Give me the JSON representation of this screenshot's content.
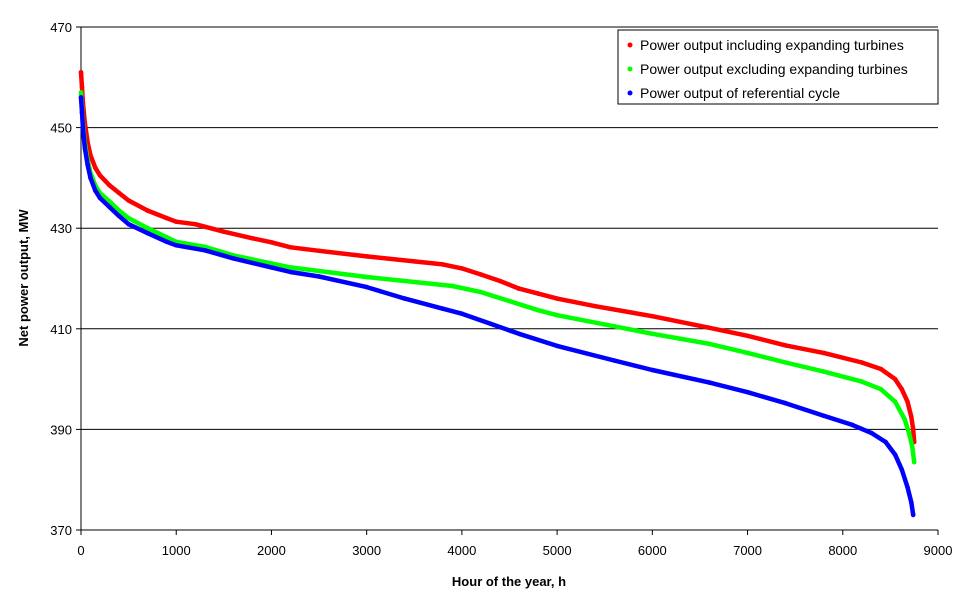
{
  "chart_data": {
    "type": "scatter",
    "title": "",
    "xlabel": "Hour of the year, h",
    "ylabel": "Net power output, MW",
    "xlim": [
      0,
      9000
    ],
    "ylim": [
      370,
      470
    ],
    "xticks": [
      0,
      1000,
      2000,
      3000,
      4000,
      5000,
      6000,
      7000,
      8000,
      9000
    ],
    "yticks": [
      370,
      390,
      410,
      430,
      450,
      470
    ],
    "grid": "horizontal",
    "legend_position": "top-right",
    "series": [
      {
        "name": "Power output including expanding turbines",
        "color": "#ff0000",
        "points": [
          [
            0,
            461
          ],
          [
            10,
            458
          ],
          [
            20,
            455
          ],
          [
            40,
            451
          ],
          [
            70,
            447
          ],
          [
            100,
            444.5
          ],
          [
            150,
            442
          ],
          [
            200,
            440.5
          ],
          [
            300,
            438.5
          ],
          [
            400,
            437
          ],
          [
            500,
            435.5
          ],
          [
            700,
            433.5
          ],
          [
            900,
            432
          ],
          [
            1000,
            431.3
          ],
          [
            1200,
            430.8
          ],
          [
            1500,
            429.3
          ],
          [
            1800,
            428
          ],
          [
            2000,
            427.2
          ],
          [
            2200,
            426.2
          ],
          [
            2500,
            425.5
          ],
          [
            3000,
            424.4
          ],
          [
            3500,
            423.4
          ],
          [
            3800,
            422.8
          ],
          [
            4000,
            422
          ],
          [
            4200,
            420.8
          ],
          [
            4400,
            419.5
          ],
          [
            4600,
            418
          ],
          [
            4800,
            417
          ],
          [
            5000,
            416
          ],
          [
            5400,
            414.5
          ],
          [
            6000,
            412.5
          ],
          [
            6600,
            410.2
          ],
          [
            7000,
            408.6
          ],
          [
            7400,
            406.7
          ],
          [
            7800,
            405.2
          ],
          [
            8200,
            403.3
          ],
          [
            8400,
            402
          ],
          [
            8550,
            400
          ],
          [
            8620,
            398
          ],
          [
            8680,
            395.5
          ],
          [
            8720,
            392.5
          ],
          [
            8740,
            390
          ],
          [
            8750,
            387.5
          ]
        ]
      },
      {
        "name": "Power output excluding expanding turbines",
        "color": "#00ff00",
        "points": [
          [
            0,
            457
          ],
          [
            10,
            454
          ],
          [
            20,
            451
          ],
          [
            40,
            447
          ],
          [
            70,
            443.5
          ],
          [
            100,
            441
          ],
          [
            150,
            438.5
          ],
          [
            200,
            437
          ],
          [
            300,
            435.3
          ],
          [
            400,
            433.5
          ],
          [
            500,
            432
          ],
          [
            700,
            430
          ],
          [
            900,
            428.2
          ],
          [
            1000,
            427.3
          ],
          [
            1300,
            426.3
          ],
          [
            1600,
            424.6
          ],
          [
            2000,
            423
          ],
          [
            2200,
            422.2
          ],
          [
            2500,
            421.5
          ],
          [
            3000,
            420.3
          ],
          [
            3500,
            419.3
          ],
          [
            3900,
            418.5
          ],
          [
            4200,
            417.3
          ],
          [
            4500,
            415.5
          ],
          [
            4800,
            413.7
          ],
          [
            5000,
            412.7
          ],
          [
            5600,
            410.5
          ],
          [
            6000,
            409
          ],
          [
            6600,
            407
          ],
          [
            7000,
            405.2
          ],
          [
            7400,
            403.3
          ],
          [
            7800,
            401.5
          ],
          [
            8200,
            399.5
          ],
          [
            8400,
            398
          ],
          [
            8550,
            395.5
          ],
          [
            8650,
            392
          ],
          [
            8700,
            389
          ],
          [
            8730,
            386.5
          ],
          [
            8750,
            383.5
          ]
        ]
      },
      {
        "name": "Power output of referential cycle",
        "color": "#0000ff",
        "points": [
          [
            0,
            456
          ],
          [
            10,
            453
          ],
          [
            20,
            450
          ],
          [
            40,
            446
          ],
          [
            70,
            442.5
          ],
          [
            100,
            440
          ],
          [
            150,
            437.5
          ],
          [
            200,
            436
          ],
          [
            300,
            434.2
          ],
          [
            400,
            432.4
          ],
          [
            500,
            430.8
          ],
          [
            700,
            429
          ],
          [
            900,
            427.3
          ],
          [
            1000,
            426.6
          ],
          [
            1300,
            425.6
          ],
          [
            1600,
            424
          ],
          [
            2000,
            422.2
          ],
          [
            2200,
            421.3
          ],
          [
            2500,
            420.4
          ],
          [
            3000,
            418.3
          ],
          [
            3400,
            416
          ],
          [
            3800,
            414
          ],
          [
            4000,
            413
          ],
          [
            4300,
            411
          ],
          [
            4600,
            409
          ],
          [
            5000,
            406.6
          ],
          [
            5600,
            403.7
          ],
          [
            6000,
            401.8
          ],
          [
            6600,
            399.3
          ],
          [
            7000,
            397.4
          ],
          [
            7400,
            395.2
          ],
          [
            7800,
            392.7
          ],
          [
            8100,
            390.9
          ],
          [
            8300,
            389.3
          ],
          [
            8450,
            387.5
          ],
          [
            8550,
            385
          ],
          [
            8620,
            382
          ],
          [
            8680,
            378.5
          ],
          [
            8720,
            375.5
          ],
          [
            8740,
            373
          ]
        ]
      }
    ]
  }
}
